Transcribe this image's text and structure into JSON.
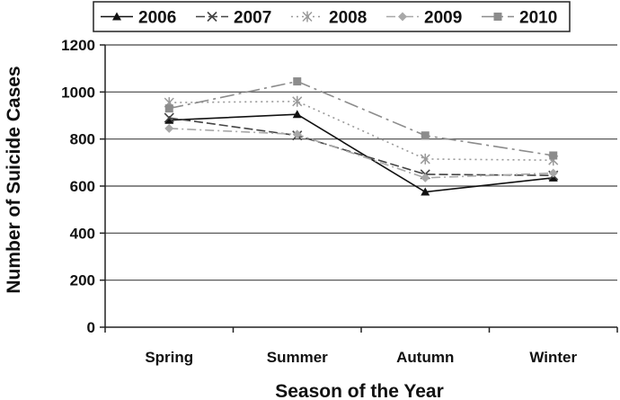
{
  "chart_data": {
    "type": "line",
    "categories": [
      "Spring",
      "Summer",
      "Autumn",
      "Winter"
    ],
    "series": [
      {
        "name": "2006",
        "values": [
          880,
          905,
          575,
          635
        ],
        "color": "#111111",
        "dash": "",
        "marker": "triangle"
      },
      {
        "name": "2007",
        "values": [
          890,
          815,
          650,
          645
        ],
        "color": "#444444",
        "dash": "10,4",
        "marker": "x"
      },
      {
        "name": "2008",
        "values": [
          955,
          960,
          715,
          710
        ],
        "color": "#9a9a9a",
        "dash": "2,4",
        "marker": "star"
      },
      {
        "name": "2009",
        "values": [
          845,
          820,
          635,
          655
        ],
        "color": "#a8a8a8",
        "dash": "10,4,2,4",
        "marker": "diamond"
      },
      {
        "name": "2010",
        "values": [
          930,
          1045,
          815,
          730
        ],
        "color": "#8c8c8c",
        "dash": "16,5,3,5",
        "marker": "square"
      }
    ],
    "title": "",
    "xlabel": "Season of the Year",
    "ylabel": "Number of Suicide Cases",
    "ylim": [
      0,
      1200
    ],
    "yticks": [
      "0",
      "200",
      "400",
      "600",
      "800",
      "1000",
      "1200"
    ],
    "grid": true,
    "legend": "top"
  }
}
